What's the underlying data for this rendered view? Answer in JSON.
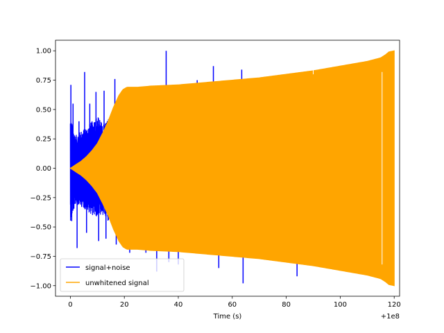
{
  "chart_data": {
    "type": "line",
    "title": "",
    "xlabel": "Time (s)",
    "ylabel": "",
    "x_offset_label": "+1e8",
    "xlim": [
      -5.5,
      122
    ],
    "ylim": [
      -1.09,
      1.09
    ],
    "xticks": [
      0,
      20,
      40,
      60,
      80,
      100,
      120
    ],
    "xtick_labels": [
      "0",
      "20",
      "40",
      "60",
      "80",
      "100",
      "120"
    ],
    "yticks": [
      -1.0,
      -0.75,
      -0.5,
      -0.25,
      0.0,
      0.25,
      0.5,
      0.75,
      1.0
    ],
    "ytick_labels": [
      "−1.00",
      "−0.75",
      "−0.50",
      "−0.25",
      "0.00",
      "0.25",
      "0.50",
      "0.75",
      "1.00"
    ],
    "grid": false,
    "legend_position": "lower-left",
    "series": [
      {
        "name": "signal+noise",
        "color": "#0000ff",
        "envelope": {
          "x": [
            0,
            1,
            2,
            4,
            6,
            8,
            10,
            12,
            14,
            16,
            18,
            20
          ],
          "upper": [
            0.45,
            0.35,
            0.28,
            0.32,
            0.35,
            0.4,
            0.45,
            0.38,
            0.42,
            0.4,
            0.45,
            0.35
          ],
          "lower": [
            -0.45,
            -0.38,
            -0.3,
            -0.33,
            -0.36,
            -0.4,
            -0.42,
            -0.4,
            -0.45,
            -0.4,
            -0.42,
            -0.35
          ]
        },
        "spikes": [
          {
            "x": 0.2,
            "y": 0.71
          },
          {
            "x": 0.5,
            "y": -0.45
          },
          {
            "x": 1.0,
            "y": 0.55
          },
          {
            "x": 2.5,
            "y": -0.68
          },
          {
            "x": 3.2,
            "y": 0.4
          },
          {
            "x": 5.3,
            "y": 0.82
          },
          {
            "x": 6.0,
            "y": -0.55
          },
          {
            "x": 7.2,
            "y": 0.55
          },
          {
            "x": 9.5,
            "y": 0.65
          },
          {
            "x": 10.5,
            "y": -0.62
          },
          {
            "x": 12.5,
            "y": 0.66
          },
          {
            "x": 13.2,
            "y": -0.6
          },
          {
            "x": 16.5,
            "y": 0.76
          },
          {
            "x": 17.0,
            "y": -0.65
          },
          {
            "x": 22.0,
            "y": -0.72
          },
          {
            "x": 23.0,
            "y": 0.67
          },
          {
            "x": 28.0,
            "y": -0.72
          },
          {
            "x": 32.0,
            "y": -0.88
          },
          {
            "x": 35.5,
            "y": 1.0
          },
          {
            "x": 36.5,
            "y": -0.8
          },
          {
            "x": 40.0,
            "y": -0.82
          },
          {
            "x": 44.0,
            "y": 0.72
          },
          {
            "x": 47.0,
            "y": 0.75
          },
          {
            "x": 53.0,
            "y": 0.87
          },
          {
            "x": 55.0,
            "y": -0.85
          },
          {
            "x": 63.5,
            "y": 0.84
          },
          {
            "x": 64.0,
            "y": -0.98
          },
          {
            "x": 84.0,
            "y": -0.92
          }
        ]
      },
      {
        "name": "unwhitened signal",
        "color": "#ffa500",
        "envelope": {
          "x": [
            0,
            2,
            4,
            6,
            8,
            10,
            12,
            14,
            16,
            18,
            19.5,
            21,
            25,
            30,
            40,
            50,
            60,
            70,
            80,
            90,
            100,
            110,
            115,
            117,
            118,
            120
          ],
          "upper": [
            0.0,
            0.03,
            0.06,
            0.1,
            0.15,
            0.21,
            0.3,
            0.4,
            0.52,
            0.62,
            0.67,
            0.69,
            0.69,
            0.7,
            0.71,
            0.73,
            0.75,
            0.77,
            0.8,
            0.83,
            0.87,
            0.91,
            0.94,
            0.97,
            0.99,
            1.0
          ],
          "lower": [
            0.0,
            -0.03,
            -0.06,
            -0.1,
            -0.15,
            -0.21,
            -0.3,
            -0.4,
            -0.52,
            -0.62,
            -0.67,
            -0.69,
            -0.69,
            -0.7,
            -0.71,
            -0.73,
            -0.75,
            -0.77,
            -0.8,
            -0.83,
            -0.87,
            -0.91,
            -0.94,
            -0.97,
            -0.99,
            -1.0
          ]
        }
      }
    ]
  }
}
